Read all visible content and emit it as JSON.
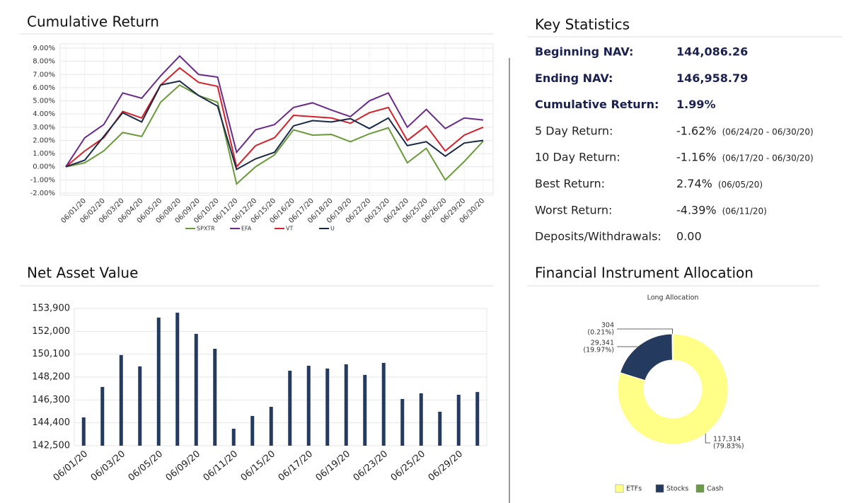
{
  "chart_data": [
    {
      "type": "line",
      "heading": "Cumulative Return",
      "categories": [
        null,
        "06/01/20",
        "06/02/20",
        "06/03/20",
        "06/04/20",
        "06/05/20",
        "06/08/20",
        "06/09/20",
        "06/10/20",
        "06/11/20",
        "06/12/20",
        "06/15/20",
        "06/16/20",
        "06/17/20",
        "06/18/20",
        "06/19/20",
        "06/22/20",
        "06/23/20",
        "06/24/20",
        "06/25/20",
        "06/26/20",
        "06/29/20",
        "06/30/20"
      ],
      "series": [
        {
          "name": "SPXTR",
          "color": "#6a9a3c",
          "values": [
            0.0,
            0.3,
            1.2,
            2.6,
            2.3,
            4.9,
            6.2,
            5.4,
            4.9,
            -1.3,
            0.0,
            0.9,
            2.8,
            2.4,
            2.45,
            1.9,
            2.5,
            2.95,
            0.3,
            1.4,
            -1.0,
            0.4,
            1.95
          ]
        },
        {
          "name": "EFA",
          "color": "#6a2a8a",
          "values": [
            0.0,
            2.2,
            3.2,
            5.6,
            5.2,
            6.9,
            8.4,
            7.0,
            6.8,
            1.1,
            2.8,
            3.2,
            4.5,
            4.85,
            4.3,
            3.8,
            5.0,
            5.6,
            3.0,
            4.35,
            2.9,
            3.7,
            3.55
          ]
        },
        {
          "name": "VT",
          "color": "#d4202a",
          "values": [
            0.0,
            1.2,
            2.2,
            4.2,
            3.7,
            6.2,
            7.5,
            6.4,
            6.1,
            0.0,
            1.6,
            2.2,
            3.9,
            3.8,
            3.7,
            3.3,
            4.1,
            4.5,
            2.0,
            3.1,
            1.2,
            2.4,
            3.0
          ]
        },
        {
          "name": "U",
          "color": "#1a2848",
          "values": [
            0.0,
            0.5,
            2.3,
            4.1,
            3.4,
            6.2,
            6.5,
            5.4,
            4.6,
            -0.2,
            0.6,
            1.1,
            3.1,
            3.5,
            3.4,
            3.65,
            2.9,
            3.7,
            1.6,
            1.9,
            0.8,
            1.8,
            2.0
          ]
        }
      ],
      "ylim": [
        -2,
        9
      ],
      "yticks": [
        {
          "value": -2,
          "label": "-2.00%"
        },
        {
          "value": -1,
          "label": "-1.00%"
        },
        {
          "value": 0,
          "label": "0.00%"
        },
        {
          "value": 1,
          "label": "1.00%"
        },
        {
          "value": 2,
          "label": "2.00%"
        },
        {
          "value": 3,
          "label": "3.00%"
        },
        {
          "value": 4,
          "label": "4.00%"
        },
        {
          "value": 5,
          "label": "5.00%"
        },
        {
          "value": 6,
          "label": "6.00%"
        },
        {
          "value": 7,
          "label": "7.00%"
        },
        {
          "value": 8,
          "label": "8.00%"
        },
        {
          "value": 9,
          "label": "9.00%"
        }
      ],
      "grid": true,
      "legend": "bottom"
    },
    {
      "type": "bar",
      "heading": "Net Asset Value",
      "color": "#243a5e",
      "categories": [
        "06/01/20",
        null,
        "06/03/20",
        null,
        "06/05/20",
        null,
        "06/09/20",
        null,
        "06/11/20",
        null,
        "06/15/20",
        null,
        "06/17/20",
        null,
        "06/19/20",
        null,
        "06/23/20",
        null,
        "06/25/20",
        null,
        "06/29/20",
        null
      ],
      "values": [
        144850,
        147380,
        150030,
        149090,
        153140,
        153550,
        151790,
        150550,
        143910,
        144970,
        145730,
        148730,
        149140,
        148910,
        149260,
        148380,
        149380,
        146380,
        146850,
        145320,
        146730,
        146960
      ],
      "ylim": [
        142500,
        153900
      ],
      "yticks": [
        {
          "value": 142500,
          "label": "142,500"
        },
        {
          "value": 144400,
          "label": "144,400"
        },
        {
          "value": 146300,
          "label": "146,300"
        },
        {
          "value": 148200,
          "label": "148,200"
        },
        {
          "value": 150100,
          "label": "150,100"
        },
        {
          "value": 152000,
          "label": "152,000"
        },
        {
          "value": 153900,
          "label": "153,900"
        }
      ],
      "grid": true
    },
    {
      "type": "pie",
      "heading": "Financial Instrument Allocation",
      "title": "Long Allocation",
      "donut": true,
      "categories": [
        "ETFs",
        "Stocks",
        "Cash"
      ],
      "values": [
        117314,
        29341,
        304
      ],
      "value_labels": [
        "117,314",
        "29,341",
        "304"
      ],
      "percent_labels": [
        "(79.83%)",
        "(19.97%)",
        "(0.21%)"
      ],
      "colors": [
        "#ffff88",
        "#243a5e",
        "#6a9a48"
      ],
      "legend": "bottom"
    }
  ],
  "key_statistics": {
    "heading": "Key Statistics",
    "rows": [
      {
        "label": "Beginning NAV:",
        "value": "144,086.26",
        "emphasis": true
      },
      {
        "label": "Ending NAV:",
        "value": "146,958.79",
        "emphasis": true
      },
      {
        "label": "Cumulative Return:",
        "value": "1.99%",
        "emphasis": true
      },
      {
        "label": "5 Day Return:",
        "value": "-1.62%",
        "note": "(06/24/20 - 06/30/20)"
      },
      {
        "label": "10 Day Return:",
        "value": "-1.16%",
        "note": "(06/17/20 - 06/30/20)"
      },
      {
        "label": "Best Return:",
        "value": "2.74%",
        "note": "(06/05/20)"
      },
      {
        "label": "Worst Return:",
        "value": "-4.39%",
        "note": "(06/11/20)"
      },
      {
        "label": "Deposits/Withdrawals:",
        "value": "0.00"
      }
    ]
  }
}
